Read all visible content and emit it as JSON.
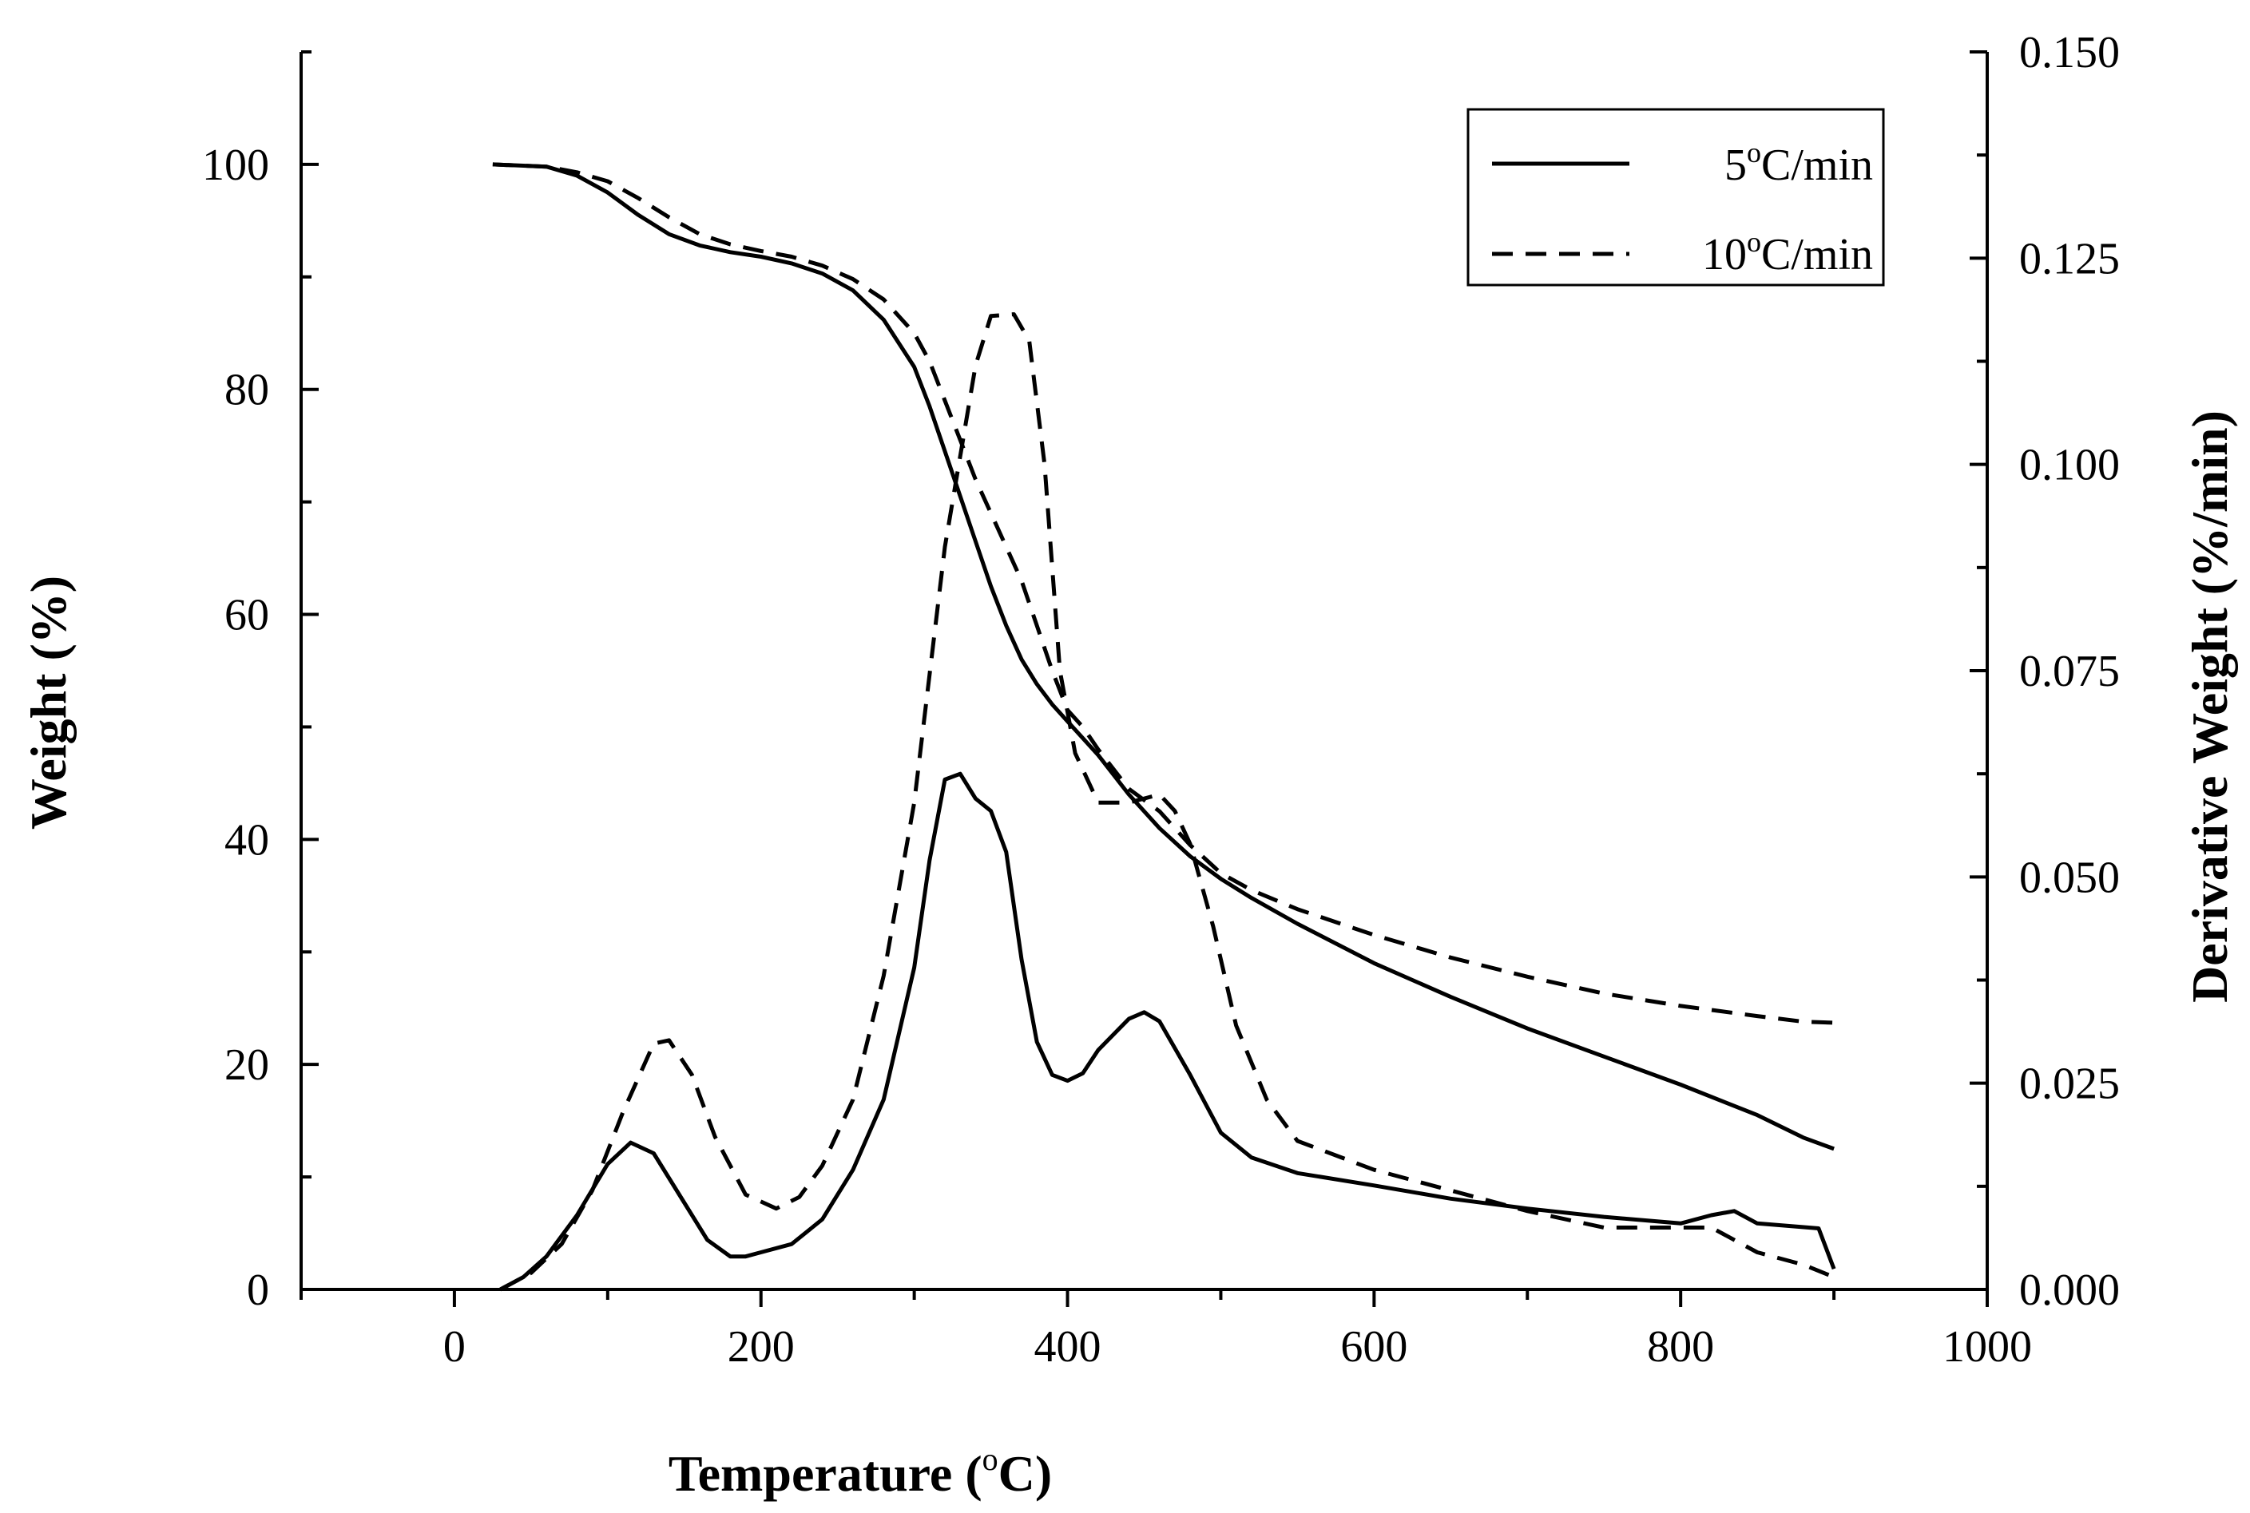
{
  "chart_data": {
    "type": "line",
    "title": "",
    "xlabel": "Temperature (oC)",
    "xlabel_parts": {
      "pre": "Temperature (",
      "sup": "o",
      "post": "C)"
    },
    "ylabel_left": "Weight (%)",
    "ylabel_right": "Derivative Weight (%/min)",
    "xlim": [
      -100,
      1000
    ],
    "ylim_left": [
      0,
      110
    ],
    "ylim_right": [
      0.0,
      0.15
    ],
    "x_ticks": [
      "0",
      "200",
      "400",
      "600",
      "800",
      "1000"
    ],
    "y_ticks_left": [
      "0",
      "20",
      "40",
      "60",
      "80",
      "100"
    ],
    "y_ticks_right": [
      "0.000",
      "0.025",
      "0.050",
      "0.075",
      "0.100",
      "0.125",
      "0.150"
    ],
    "legend_position": "top-right",
    "legend": [
      {
        "label": "5oC/min",
        "num": "5",
        "sup": "o",
        "rest": "C/min",
        "style": "solid"
      },
      {
        "label": "10oC/min",
        "num": "10",
        "sup": "o",
        "rest": "C/min",
        "style": "dashed"
      }
    ],
    "series": [
      {
        "name": "5oC/min weight",
        "axis": "left",
        "style": "solid",
        "points": [
          [
            25,
            100
          ],
          [
            60,
            99.8
          ],
          [
            80,
            99
          ],
          [
            100,
            97.5
          ],
          [
            120,
            95.5
          ],
          [
            140,
            93.8
          ],
          [
            160,
            92.8
          ],
          [
            180,
            92.2
          ],
          [
            200,
            91.8
          ],
          [
            220,
            91.2
          ],
          [
            240,
            90.3
          ],
          [
            260,
            88.8
          ],
          [
            280,
            86.2
          ],
          [
            300,
            82
          ],
          [
            310,
            78.5
          ],
          [
            320,
            74.5
          ],
          [
            330,
            70.5
          ],
          [
            340,
            66.5
          ],
          [
            350,
            62.5
          ],
          [
            360,
            59
          ],
          [
            370,
            56
          ],
          [
            380,
            53.8
          ],
          [
            390,
            52
          ],
          [
            400,
            50.5
          ],
          [
            420,
            47.5
          ],
          [
            440,
            44
          ],
          [
            460,
            41
          ],
          [
            480,
            38.5
          ],
          [
            500,
            36.5
          ],
          [
            520,
            34.8
          ],
          [
            550,
            32.5
          ],
          [
            600,
            29
          ],
          [
            650,
            26
          ],
          [
            700,
            23.2
          ],
          [
            750,
            20.7
          ],
          [
            800,
            18.2
          ],
          [
            850,
            15.5
          ],
          [
            880,
            13.5
          ],
          [
            900,
            12.5
          ]
        ]
      },
      {
        "name": "10oC/min weight",
        "axis": "left",
        "style": "dashed",
        "points": [
          [
            25,
            100
          ],
          [
            60,
            99.8
          ],
          [
            80,
            99.3
          ],
          [
            100,
            98.5
          ],
          [
            120,
            97
          ],
          [
            140,
            95.3
          ],
          [
            160,
            93.8
          ],
          [
            180,
            92.9
          ],
          [
            200,
            92.3
          ],
          [
            220,
            91.8
          ],
          [
            240,
            91
          ],
          [
            260,
            89.8
          ],
          [
            280,
            88
          ],
          [
            300,
            85
          ],
          [
            310,
            82.5
          ],
          [
            320,
            79
          ],
          [
            330,
            75.5
          ],
          [
            340,
            72
          ],
          [
            350,
            69
          ],
          [
            360,
            66
          ],
          [
            370,
            63
          ],
          [
            380,
            59
          ],
          [
            390,
            55
          ],
          [
            400,
            51.5
          ],
          [
            410,
            50
          ],
          [
            420,
            48
          ],
          [
            440,
            44.5
          ],
          [
            460,
            42.5
          ],
          [
            480,
            39.5
          ],
          [
            500,
            37
          ],
          [
            520,
            35.5
          ],
          [
            550,
            33.8
          ],
          [
            600,
            31.5
          ],
          [
            650,
            29.5
          ],
          [
            700,
            27.8
          ],
          [
            750,
            26.3
          ],
          [
            800,
            25.2
          ],
          [
            850,
            24.3
          ],
          [
            880,
            23.8
          ],
          [
            900,
            23.7
          ]
        ]
      },
      {
        "name": "5oC/min derivative",
        "axis": "right",
        "style": "solid",
        "points": [
          [
            30,
            0
          ],
          [
            45,
            0.0015
          ],
          [
            60,
            0.004
          ],
          [
            80,
            0.009
          ],
          [
            100,
            0.0152
          ],
          [
            115,
            0.0178
          ],
          [
            130,
            0.0165
          ],
          [
            150,
            0.0105
          ],
          [
            165,
            0.006
          ],
          [
            180,
            0.004
          ],
          [
            190,
            0.004
          ],
          [
            200,
            0.0045
          ],
          [
            220,
            0.0055
          ],
          [
            240,
            0.0085
          ],
          [
            260,
            0.0145
          ],
          [
            280,
            0.023
          ],
          [
            300,
            0.039
          ],
          [
            310,
            0.052
          ],
          [
            320,
            0.0618
          ],
          [
            330,
            0.0625
          ],
          [
            340,
            0.0595
          ],
          [
            350,
            0.058
          ],
          [
            360,
            0.053
          ],
          [
            370,
            0.04
          ],
          [
            380,
            0.03
          ],
          [
            390,
            0.026
          ],
          [
            400,
            0.0253
          ],
          [
            410,
            0.0262
          ],
          [
            420,
            0.029
          ],
          [
            440,
            0.0328
          ],
          [
            450,
            0.0336
          ],
          [
            460,
            0.0325
          ],
          [
            480,
            0.026
          ],
          [
            500,
            0.019
          ],
          [
            520,
            0.016
          ],
          [
            550,
            0.0141
          ],
          [
            600,
            0.0126
          ],
          [
            650,
            0.011
          ],
          [
            700,
            0.0098
          ],
          [
            750,
            0.0088
          ],
          [
            800,
            0.008
          ],
          [
            820,
            0.009
          ],
          [
            835,
            0.0095
          ],
          [
            850,
            0.008
          ],
          [
            870,
            0.0077
          ],
          [
            890,
            0.0074
          ],
          [
            900,
            0.0025
          ]
        ]
      },
      {
        "name": "10oC/min derivative",
        "axis": "right",
        "style": "dashed",
        "points": [
          [
            30,
            0
          ],
          [
            50,
            0.002
          ],
          [
            70,
            0.0055
          ],
          [
            90,
            0.012
          ],
          [
            110,
            0.0215
          ],
          [
            130,
            0.0298
          ],
          [
            140,
            0.0302
          ],
          [
            155,
            0.026
          ],
          [
            170,
            0.0185
          ],
          [
            190,
            0.0115
          ],
          [
            210,
            0.0098
          ],
          [
            225,
            0.0112
          ],
          [
            240,
            0.015
          ],
          [
            260,
            0.023
          ],
          [
            280,
            0.038
          ],
          [
            300,
            0.059
          ],
          [
            320,
            0.09
          ],
          [
            340,
            0.112
          ],
          [
            350,
            0.118
          ],
          [
            365,
            0.1182
          ],
          [
            375,
            0.115
          ],
          [
            385,
            0.1
          ],
          [
            395,
            0.075
          ],
          [
            405,
            0.065
          ],
          [
            420,
            0.059
          ],
          [
            440,
            0.059
          ],
          [
            460,
            0.06
          ],
          [
            470,
            0.058
          ],
          [
            480,
            0.054
          ],
          [
            495,
            0.044
          ],
          [
            510,
            0.032
          ],
          [
            530,
            0.023
          ],
          [
            550,
            0.018
          ],
          [
            600,
            0.0145
          ],
          [
            650,
            0.012
          ],
          [
            700,
            0.0095
          ],
          [
            750,
            0.0075
          ],
          [
            790,
            0.0075
          ],
          [
            820,
            0.0075
          ],
          [
            850,
            0.0045
          ],
          [
            880,
            0.003
          ],
          [
            900,
            0.0015
          ]
        ]
      }
    ]
  }
}
